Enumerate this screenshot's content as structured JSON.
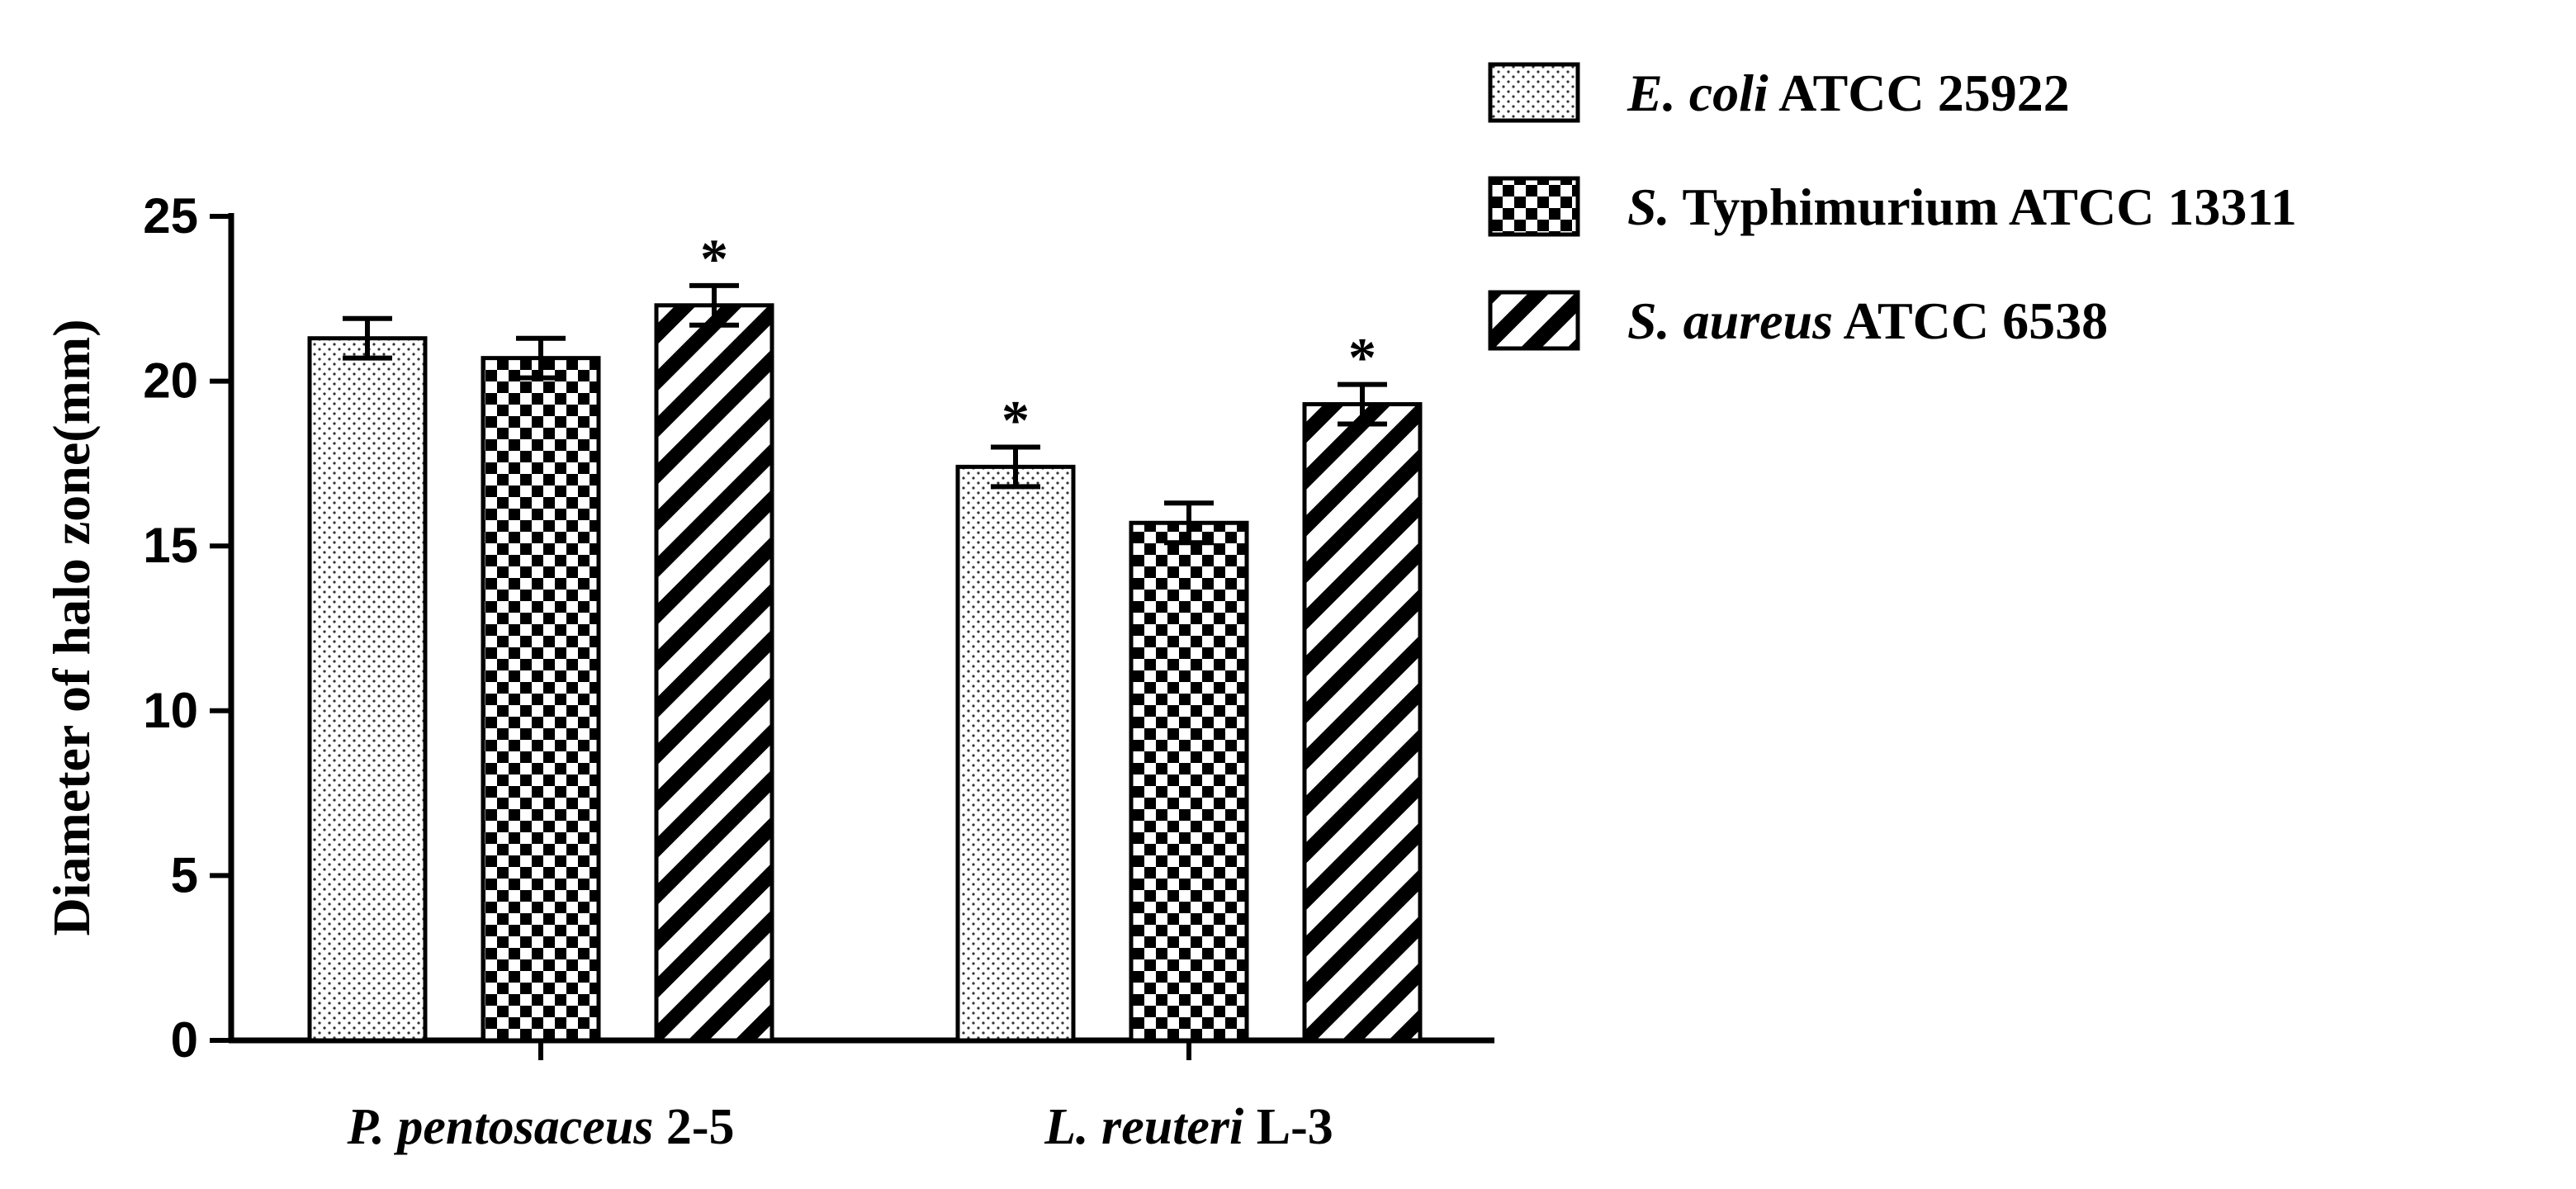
{
  "chart_data": {
    "type": "bar",
    "title": "",
    "xlabel": "",
    "ylabel": "Diameter  of halo zone(mm)",
    "ylim": [
      0,
      25
    ],
    "yticks": [
      "0",
      "5",
      "10",
      "15",
      "20",
      "25"
    ],
    "grid": false,
    "legend_position": "top-right",
    "categories": [
      {
        "italic": "P. pentosaceus",
        "suffix": " 2-5"
      },
      {
        "italic": "L. reuteri",
        "suffix": "  L-3"
      }
    ],
    "series": [
      {
        "italic": "E. coli",
        "suffix": " ATCC 25922",
        "pattern": "dots",
        "values": [
          21.3,
          17.4
        ],
        "errors": [
          0.6,
          0.6
        ],
        "marks": [
          "",
          "*"
        ]
      },
      {
        "italic": "S.",
        "suffix": " Typhimurium ATCC 13311",
        "pattern": "checker",
        "values": [
          20.7,
          15.7
        ],
        "errors": [
          0.6,
          0.6
        ],
        "marks": [
          "",
          ""
        ]
      },
      {
        "italic": "S. aureus",
        "suffix": " ATCC 6538",
        "pattern": "stripes",
        "values": [
          22.3,
          19.3
        ],
        "errors": [
          0.6,
          0.6
        ],
        "marks": [
          "*",
          "*"
        ]
      }
    ]
  }
}
